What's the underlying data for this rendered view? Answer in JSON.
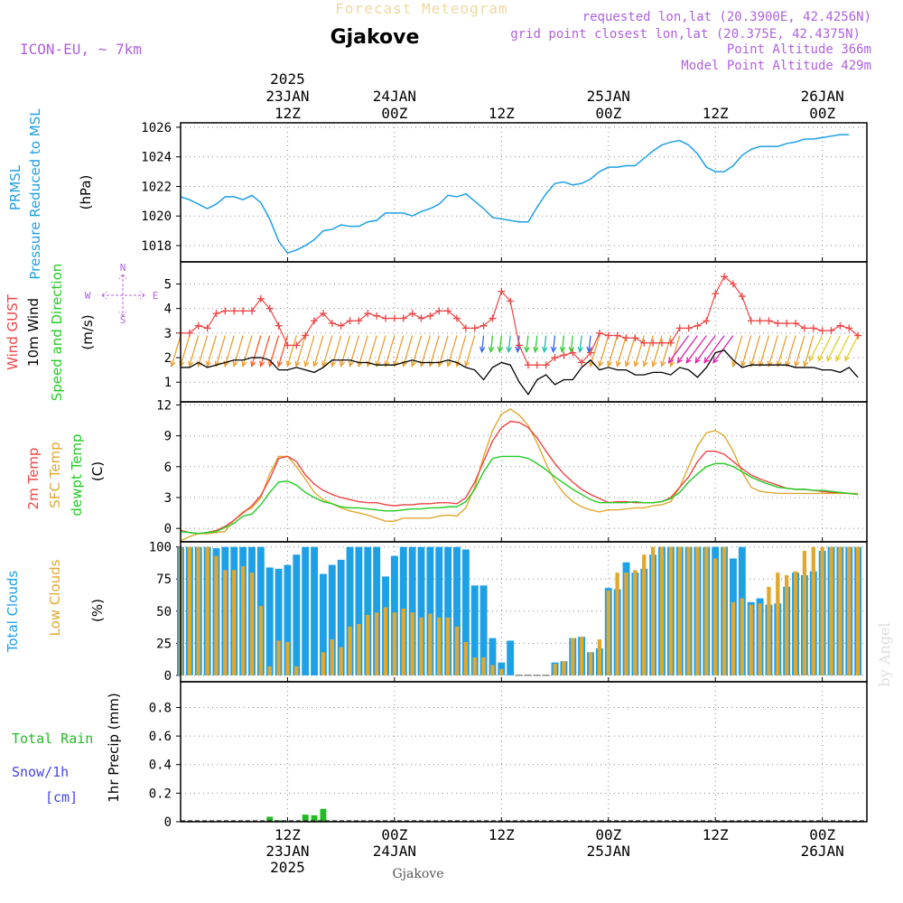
{
  "header": {
    "title": "Forecast Meteogram",
    "location": "Gjakove",
    "model": "ICON-EU, ~ 7km",
    "requested": "requested lon,lat (20.3900E, 42.4256N)",
    "grid_point": "grid point closest lon,lat (20.375E, 42.4375N)",
    "point_altitude": "Point Altitude 366m",
    "model_altitude": "Model Point Altitude 429m",
    "footer_location": "Gjakove",
    "credit": "by Angel"
  },
  "colors": {
    "pressure": "#1ea0e6",
    "gust": "#ee4444",
    "wind": "#000000",
    "temp": "#ee4444",
    "sfc": "#e0a830",
    "dewpt": "#22cc22",
    "total_clouds": "#1ea0e6",
    "low_clouds": "#e0a830",
    "rain": "#22bb22",
    "snow": "#4444ee",
    "header_purple": "#b060e0",
    "title_gold": "#f0d8a0"
  },
  "time_axis": {
    "top": [
      {
        "t": 12,
        "lines": [
          "2025",
          "23JAN",
          "12Z"
        ]
      },
      {
        "t": 24,
        "lines": [
          "24JAN",
          "00Z"
        ]
      },
      {
        "t": 36,
        "lines": [
          "12Z"
        ]
      },
      {
        "t": 48,
        "lines": [
          "25JAN",
          "00Z"
        ]
      },
      {
        "t": 60,
        "lines": [
          "12Z"
        ]
      },
      {
        "t": 72,
        "lines": [
          "26JAN",
          "00Z"
        ]
      }
    ],
    "bottom": [
      {
        "t": 12,
        "lines": [
          "12Z",
          "23JAN",
          "2025"
        ]
      },
      {
        "t": 24,
        "lines": [
          "00Z",
          "24JAN"
        ]
      },
      {
        "t": 36,
        "lines": [
          "12Z"
        ]
      },
      {
        "t": 48,
        "lines": [
          "00Z",
          "25JAN"
        ]
      },
      {
        "t": 60,
        "lines": [
          "12Z"
        ]
      },
      {
        "t": 72,
        "lines": [
          "00Z",
          "26JAN"
        ]
      }
    ]
  },
  "chart_data": [
    {
      "type": "line",
      "name": "pressure",
      "ylabel_lines": [
        "PRMSL",
        "Pressure Reduced to MSL"
      ],
      "unit": "(hPa)",
      "ylim": [
        1016.9,
        1026.3
      ],
      "yticks": [
        1018,
        1020,
        1022,
        1024,
        1026
      ],
      "series": [
        {
          "name": "PRMSL",
          "values": [
            1021.3,
            1021.1,
            1020.8,
            1020.5,
            1020.8,
            1021.3,
            1021.3,
            1021.1,
            1021.4,
            1020.9,
            1019.8,
            1018.3,
            1017.5,
            1017.7,
            1018.0,
            1018.4,
            1019.0,
            1019.1,
            1019.4,
            1019.3,
            1019.3,
            1019.6,
            1019.7,
            1020.2,
            1020.2,
            1020.2,
            1020.0,
            1020.3,
            1020.5,
            1020.8,
            1021.4,
            1021.3,
            1021.5,
            1021.0,
            1020.5,
            1019.9,
            1019.8,
            1019.7,
            1019.6,
            1019.6,
            1020.6,
            1021.5,
            1022.2,
            1022.3,
            1022.1,
            1022.2,
            1022.5,
            1023.0,
            1023.3,
            1023.3,
            1023.4,
            1023.4,
            1023.9,
            1024.4,
            1024.8,
            1025.0,
            1025.1,
            1024.8,
            1024.2,
            1023.3,
            1023.0,
            1023.0,
            1023.4,
            1024.1,
            1024.5,
            1024.7,
            1024.7,
            1024.7,
            1024.9,
            1025.0,
            1025.2,
            1025.2,
            1025.3,
            1025.4,
            1025.5,
            1025.5
          ]
        }
      ]
    },
    {
      "type": "line",
      "name": "wind",
      "ylabel_lines": [
        "Wind GUST",
        "10m Wind",
        "Speed and Direction"
      ],
      "unit": "(m/s)",
      "compass": [
        "N",
        "W",
        "E",
        "S"
      ],
      "ylim": [
        0.2,
        5.9
      ],
      "yticks": [
        1,
        2,
        3,
        4,
        5
      ],
      "series": [
        {
          "name": "Wind GUST",
          "values": [
            3.0,
            3.0,
            3.3,
            3.2,
            3.8,
            3.9,
            3.9,
            3.9,
            3.9,
            4.4,
            4.0,
            3.3,
            2.5,
            2.5,
            2.9,
            3.5,
            3.8,
            3.4,
            3.3,
            3.5,
            3.5,
            3.8,
            3.7,
            3.6,
            3.6,
            3.6,
            3.8,
            3.6,
            3.7,
            3.9,
            3.9,
            3.6,
            3.2,
            3.2,
            3.3,
            3.6,
            4.7,
            4.3,
            2.5,
            1.7,
            1.7,
            1.7,
            2.0,
            2.1,
            2.2,
            1.8,
            2.2,
            3.0,
            2.9,
            2.9,
            2.8,
            2.8,
            2.6,
            2.6,
            2.6,
            2.6,
            3.2,
            3.2,
            3.3,
            3.5,
            4.6,
            5.3,
            5.0,
            4.5,
            3.5,
            3.5,
            3.5,
            3.4,
            3.4,
            3.4,
            3.2,
            3.2,
            3.1,
            3.1,
            3.3,
            3.2,
            2.9
          ]
        },
        {
          "name": "10m Wind",
          "values": [
            1.6,
            1.6,
            1.8,
            1.6,
            1.7,
            1.8,
            1.9,
            1.9,
            2.0,
            2.0,
            1.9,
            1.5,
            1.5,
            1.6,
            1.5,
            1.4,
            1.6,
            1.9,
            1.9,
            1.9,
            1.8,
            1.8,
            1.7,
            1.7,
            1.7,
            1.8,
            1.9,
            1.8,
            1.8,
            1.8,
            1.9,
            1.8,
            1.6,
            1.5,
            1.1,
            1.6,
            1.8,
            1.7,
            1.0,
            0.5,
            1.1,
            1.3,
            0.9,
            1.1,
            1.1,
            1.6,
            1.9,
            1.5,
            1.6,
            1.5,
            1.5,
            1.3,
            1.3,
            1.4,
            1.4,
            1.3,
            1.6,
            1.5,
            1.2,
            1.6,
            2.2,
            2.3,
            1.9,
            1.6,
            1.7,
            1.7,
            1.7,
            1.7,
            1.7,
            1.6,
            1.6,
            1.6,
            1.5,
            1.5,
            1.4,
            1.6,
            1.2
          ]
        }
      ]
    },
    {
      "type": "line",
      "name": "temperature",
      "ylabel_lines": [
        "2m Temp",
        "SFC Temp",
        "dewpt Temp"
      ],
      "unit": "(C)",
      "ylim": [
        -1.3,
        12.3
      ],
      "yticks": [
        0,
        3,
        6,
        9,
        12
      ],
      "series": [
        {
          "name": "2m Temp",
          "values": [
            -0.2,
            -0.4,
            -0.5,
            -0.4,
            -0.2,
            0.2,
            0.8,
            1.5,
            2.2,
            3.2,
            4.8,
            6.8,
            7.0,
            6.5,
            5.2,
            4.3,
            3.7,
            3.3,
            3.0,
            2.8,
            2.6,
            2.5,
            2.5,
            2.3,
            2.2,
            2.3,
            2.3,
            2.4,
            2.4,
            2.5,
            2.5,
            2.4,
            3.0,
            4.5,
            6.5,
            8.5,
            9.8,
            10.4,
            10.3,
            9.8,
            8.8,
            7.5,
            6.3,
            5.3,
            4.5,
            3.8,
            3.3,
            2.9,
            2.5,
            2.6,
            2.6,
            2.5,
            2.5,
            2.5,
            2.6,
            3.0,
            4.0,
            5.0,
            6.5,
            7.5,
            7.5,
            7.2,
            6.5,
            5.8,
            5.2,
            4.8,
            4.5,
            4.2,
            3.9,
            3.8,
            3.8,
            3.7,
            3.6,
            3.5,
            3.5,
            3.4,
            3.3
          ]
        },
        {
          "name": "SFC Temp",
          "values": [
            -1.2,
            -0.8,
            -0.5,
            -0.5,
            -0.4,
            -0.3,
            0.8,
            1.6,
            2.0,
            3.0,
            5.3,
            7.0,
            7.0,
            6.0,
            4.8,
            3.5,
            2.8,
            2.4,
            2.0,
            1.7,
            1.5,
            1.3,
            1.0,
            0.7,
            0.7,
            1.0,
            1.0,
            1.0,
            1.0,
            1.2,
            1.3,
            1.2,
            2.0,
            4.0,
            7.0,
            9.5,
            11.1,
            11.6,
            11.0,
            10.0,
            8.3,
            6.3,
            4.6,
            3.4,
            2.6,
            2.1,
            1.8,
            1.6,
            1.8,
            1.8,
            1.9,
            2.0,
            2.0,
            2.2,
            2.3,
            2.6,
            4.0,
            6.0,
            8.0,
            9.3,
            9.5,
            9.0,
            7.5,
            5.5,
            4.0,
            3.6,
            3.5,
            3.4,
            3.4,
            3.4,
            3.4,
            3.4,
            3.4,
            3.4,
            3.4,
            3.4,
            3.4
          ]
        },
        {
          "name": "dewpt Temp",
          "values": [
            -0.3,
            -0.4,
            -0.5,
            -0.4,
            -0.3,
            0.1,
            0.5,
            1.2,
            1.4,
            2.3,
            3.5,
            4.5,
            4.6,
            4.2,
            3.5,
            3.0,
            2.6,
            2.4,
            2.1,
            2.0,
            2.0,
            1.9,
            1.8,
            1.7,
            1.7,
            1.8,
            1.9,
            1.9,
            2.0,
            2.0,
            2.1,
            2.1,
            2.6,
            3.8,
            5.5,
            6.8,
            7.0,
            7.0,
            7.0,
            6.8,
            6.3,
            5.7,
            5.0,
            4.4,
            3.8,
            3.3,
            2.8,
            2.5,
            2.5,
            2.5,
            2.5,
            2.6,
            2.5,
            2.5,
            2.6,
            2.9,
            3.5,
            4.5,
            5.3,
            6.0,
            6.3,
            6.3,
            6.0,
            5.5,
            5.0,
            4.6,
            4.3,
            4.0,
            3.9,
            3.8,
            3.8,
            3.7,
            3.7,
            3.6,
            3.5,
            3.4,
            3.3
          ]
        }
      ]
    },
    {
      "type": "bar",
      "name": "clouds",
      "ylabel_lines": [
        "Total Clouds",
        "Low Clouds"
      ],
      "unit": "(%)",
      "ylim": [
        -5,
        104
      ],
      "yticks": [
        0,
        25,
        50,
        75,
        100
      ],
      "series": [
        {
          "name": "Total Clouds",
          "values": [
            100,
            100,
            100,
            100,
            99,
            100,
            100,
            100,
            100,
            100,
            84,
            83,
            86,
            94,
            100,
            100,
            79,
            86,
            90,
            100,
            100,
            100,
            100,
            77,
            93,
            100,
            100,
            100,
            100,
            100,
            100,
            100,
            98,
            70,
            70,
            29,
            10,
            27,
            0,
            0,
            0,
            0,
            10,
            11,
            29,
            30,
            18,
            21,
            68,
            67,
            88,
            80,
            83,
            94,
            100,
            100,
            100,
            100,
            100,
            100,
            100,
            100,
            91,
            100,
            57,
            60,
            55,
            56,
            69,
            80,
            78,
            81,
            97,
            100,
            100,
            100,
            100
          ]
        },
        {
          "name": "Low Clouds",
          "values": [
            100,
            100,
            100,
            100,
            93,
            82,
            82,
            85,
            80,
            54,
            7,
            27,
            26,
            7,
            0,
            0,
            18,
            28,
            22,
            38,
            40,
            47,
            49,
            53,
            49,
            52,
            49,
            45,
            48,
            45,
            45,
            38,
            26,
            14,
            14,
            8,
            5,
            0,
            0,
            0,
            0,
            0,
            9,
            11,
            29,
            30,
            18,
            28,
            66,
            80,
            80,
            82,
            94,
            100,
            100,
            100,
            100,
            100,
            100,
            100,
            91,
            100,
            57,
            60,
            55,
            56,
            69,
            80,
            78,
            81,
            97,
            100,
            100,
            100,
            100,
            100,
            100
          ]
        }
      ]
    },
    {
      "type": "bar",
      "name": "precipitation",
      "ylabel_lines": [
        "1hr Precip (mm)"
      ],
      "legend": [
        "Total  Rain",
        "Snow/1h",
        "[cm]"
      ],
      "ylim": [
        0,
        0.98
      ],
      "yticks": [
        "0",
        "0.2",
        "0.4",
        "0.6",
        "0.8"
      ],
      "series": [
        {
          "name": "Total Rain",
          "values": [
            0,
            0,
            0,
            0,
            0,
            0,
            0,
            0.005,
            0,
            0,
            0.035,
            0.01,
            0,
            0,
            0.05,
            0.045,
            0.09,
            0.005,
            0,
            0,
            0.005,
            0,
            0,
            0,
            0,
            0,
            0,
            0,
            0,
            0,
            0,
            0,
            0,
            0,
            0,
            0,
            0,
            0,
            0,
            0,
            0,
            0,
            0,
            0,
            0,
            0,
            0,
            0,
            0,
            0,
            0,
            0,
            0,
            0,
            0,
            0,
            0,
            0,
            0,
            0,
            0,
            0,
            0,
            0,
            0,
            0,
            0,
            0,
            0,
            0,
            0,
            0,
            0,
            0,
            0,
            0,
            0
          ]
        }
      ]
    }
  ]
}
